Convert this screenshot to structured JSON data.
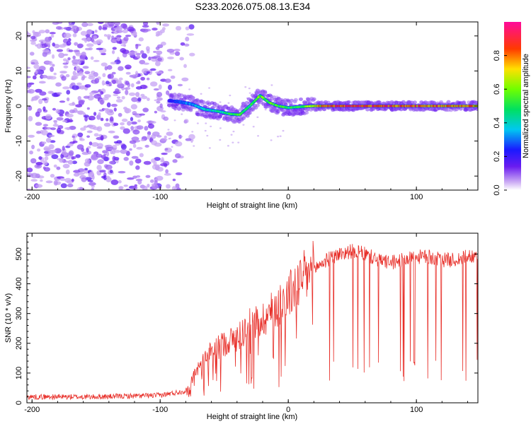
{
  "title": "S233.2026.075.08.13.E34",
  "chart_data": [
    {
      "type": "heatmap",
      "name": "spectrogram",
      "xlabel": "Height of straight line (km)",
      "ylabel": "Frequency (Hz)",
      "xlim": [
        -204,
        148
      ],
      "ylim": [
        -24,
        24
      ],
      "xticks": [
        -200,
        -100,
        0,
        100
      ],
      "xtick_labels": [
        "-200",
        "-100",
        "0",
        "100"
      ],
      "yticks": [
        -20,
        -10,
        0,
        10,
        20
      ],
      "ytick_labels": [
        "-20",
        "-10",
        "0",
        "10",
        "20"
      ],
      "noise_region_x": [
        -204,
        -95
      ],
      "ridge": {
        "x": [
          -93,
          -85,
          -75,
          -65,
          -55,
          -45,
          -38,
          -30,
          -22,
          -15,
          -8,
          0,
          10,
          20,
          40,
          60,
          80,
          100,
          120,
          148
        ],
        "y": [
          1.5,
          1.2,
          0.5,
          -1.0,
          -1.5,
          -2.3,
          -2.5,
          0.0,
          3.0,
          1.0,
          0.0,
          -0.5,
          -0.2,
          0.0,
          0.0,
          0.0,
          0.0,
          0.0,
          0.0,
          0.0
        ],
        "amplitude": [
          0.2,
          0.3,
          0.35,
          0.4,
          0.45,
          0.5,
          0.55,
          0.5,
          0.6,
          0.6,
          0.55,
          0.5,
          0.55,
          0.7,
          0.95,
          0.95,
          0.9,
          0.9,
          0.85,
          0.8
        ]
      },
      "colorbar": {
        "label": "Normalized spectral amplitude",
        "range": [
          0.0,
          1.0
        ],
        "ticks": [
          0.0,
          0.2,
          0.4,
          0.6,
          0.8
        ],
        "tick_labels": [
          "0.0",
          "0.2",
          "0.4",
          "0.6",
          "0.8"
        ]
      }
    },
    {
      "type": "line",
      "name": "snr",
      "xlabel": "Height of straight line (km)",
      "ylabel": "SNR (10 * v/v)",
      "xlim": [
        -204,
        148
      ],
      "ylim": [
        0,
        570
      ],
      "xticks": [
        -200,
        -100,
        0,
        100
      ],
      "xtick_labels": [
        "-200",
        "-100",
        "0",
        "100"
      ],
      "yticks": [
        0,
        100,
        200,
        300,
        400,
        500
      ],
      "ytick_labels": [
        "0",
        "100",
        "200",
        "300",
        "400",
        "500"
      ],
      "color": "#e8302a",
      "envelope": {
        "x": [
          -204,
          -150,
          -100,
          -80,
          -70,
          -60,
          -50,
          -40,
          -30,
          -20,
          -10,
          0,
          10,
          20,
          30,
          40,
          50,
          60,
          70,
          80,
          90,
          100,
          110,
          120,
          130,
          148
        ],
        "y": [
          20,
          20,
          25,
          40,
          120,
          170,
          200,
          220,
          260,
          280,
          320,
          360,
          410,
          450,
          480,
          500,
          510,
          500,
          480,
          470,
          480,
          490,
          490,
          480,
          480,
          500
        ]
      }
    }
  ]
}
